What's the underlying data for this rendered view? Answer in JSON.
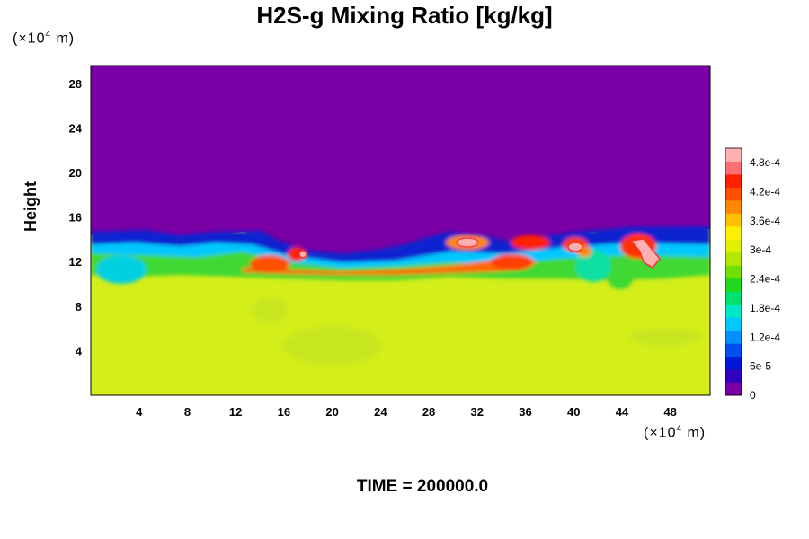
{
  "chart_data": {
    "type": "heatmap",
    "title": "H2S-g Mixing Ratio [kg/kg]",
    "xlabel": "",
    "ylabel": "Height",
    "x_unit": {
      "prefix": "(×10",
      "exp": "4",
      "suffix": " m)"
    },
    "y_unit": {
      "prefix": "(×10",
      "exp": "4",
      "suffix": " m)"
    },
    "xlim": [
      0,
      51.3
    ],
    "ylim": [
      0,
      29.6
    ],
    "x_ticks": [
      "4",
      "8",
      "12",
      "16",
      "20",
      "24",
      "28",
      "32",
      "36",
      "40",
      "44",
      "48"
    ],
    "y_ticks": [
      "4",
      "8",
      "12",
      "16",
      "20",
      "24",
      "28"
    ],
    "colorbar": {
      "range": [
        0,
        0.00051
      ],
      "tick_labels": [
        "0",
        "6e-5",
        "1.2e-4",
        "1.8e-4",
        "2.4e-4",
        "3e-4",
        "3.6e-4",
        "4.2e-4",
        "4.8e-4"
      ],
      "tick_values": [
        0,
        6e-05,
        0.00012,
        0.00018,
        0.00024,
        0.0003,
        0.00036,
        0.00042,
        0.00048
      ],
      "colors": [
        "#7a00a6",
        "#3300c0",
        "#0018d8",
        "#0050f0",
        "#0090ff",
        "#00c8ff",
        "#00e8c8",
        "#00e070",
        "#20d820",
        "#70e000",
        "#b0e800",
        "#e0f000",
        "#ffee00",
        "#ffc000",
        "#ff8800",
        "#ff5000",
        "#ff2000",
        "#ff7070",
        "#ffb0b0"
      ]
    },
    "fields": {
      "upper_value": 0,
      "lower_value": 0.00034
    }
  },
  "footer": {
    "text": "TIME = 200000.0"
  }
}
